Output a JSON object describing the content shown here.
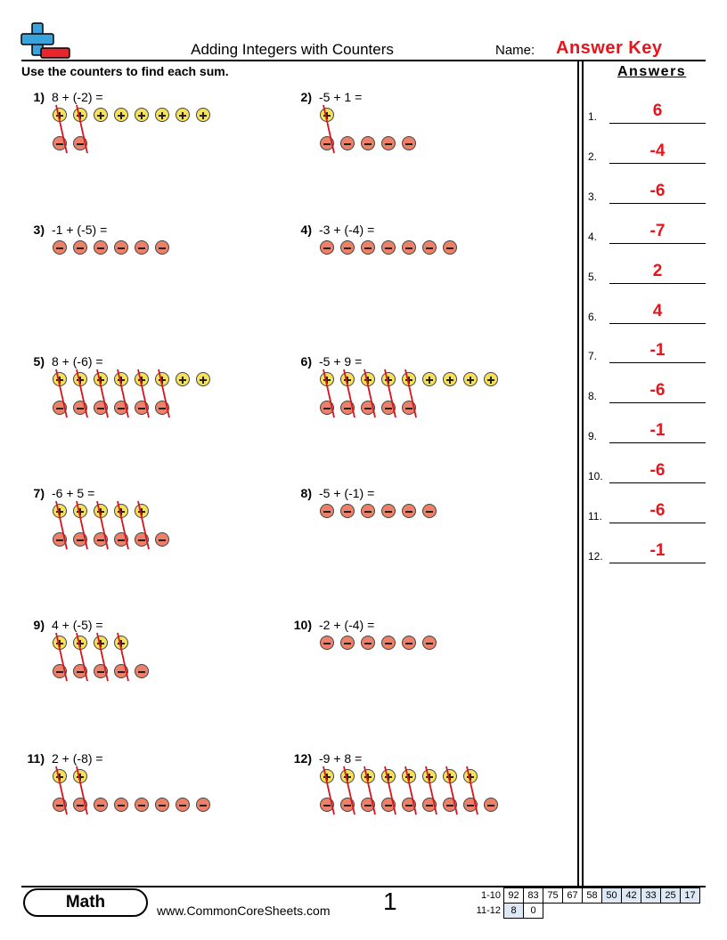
{
  "header": {
    "title": "Adding Integers with Counters",
    "name_label": "Name:",
    "answer_key_label": "Answer Key",
    "instructions": "Use the counters to find each sum."
  },
  "colors": {
    "positive_counter": "#f6e05a",
    "negative_counter": "#ec8068",
    "cross_out": "#d8141c",
    "answer_text": "#e8141c"
  },
  "problems": [
    {
      "number": "1)",
      "expression": "8 + (-2) =",
      "positives": 8,
      "negatives": 2,
      "cancelled": 2
    },
    {
      "number": "2)",
      "expression": "-5 + 1 =",
      "positives": 1,
      "negatives": 5,
      "cancelled": 1
    },
    {
      "number": "3)",
      "expression": "-1 + (-5) =",
      "positives": 0,
      "negatives": 6,
      "cancelled": 0
    },
    {
      "number": "4)",
      "expression": "-3 + (-4) =",
      "positives": 0,
      "negatives": 7,
      "cancelled": 0
    },
    {
      "number": "5)",
      "expression": "8 + (-6) =",
      "positives": 8,
      "negatives": 6,
      "cancelled": 6
    },
    {
      "number": "6)",
      "expression": "-5 + 9 =",
      "positives": 9,
      "negatives": 5,
      "cancelled": 5
    },
    {
      "number": "7)",
      "expression": "-6 + 5 =",
      "positives": 5,
      "negatives": 6,
      "cancelled": 5
    },
    {
      "number": "8)",
      "expression": "-5 + (-1) =",
      "positives": 0,
      "negatives": 6,
      "cancelled": 0
    },
    {
      "number": "9)",
      "expression": "4 + (-5) =",
      "positives": 4,
      "negatives": 5,
      "cancelled": 4
    },
    {
      "number": "10)",
      "expression": "-2 + (-4) =",
      "positives": 0,
      "negatives": 6,
      "cancelled": 0
    },
    {
      "number": "11)",
      "expression": "2 + (-8) =",
      "positives": 2,
      "negatives": 8,
      "cancelled": 2
    },
    {
      "number": "12)",
      "expression": "-9 + 8 =",
      "positives": 8,
      "negatives": 9,
      "cancelled": 8
    }
  ],
  "answers": {
    "title": "Answers",
    "items": [
      {
        "number": "1.",
        "value": "6"
      },
      {
        "number": "2.",
        "value": "-4"
      },
      {
        "number": "3.",
        "value": "-6"
      },
      {
        "number": "4.",
        "value": "-7"
      },
      {
        "number": "5.",
        "value": "2"
      },
      {
        "number": "6.",
        "value": "4"
      },
      {
        "number": "7.",
        "value": "-1"
      },
      {
        "number": "8.",
        "value": "-6"
      },
      {
        "number": "9.",
        "value": "-1"
      },
      {
        "number": "10.",
        "value": "-6"
      },
      {
        "number": "11.",
        "value": "-6"
      },
      {
        "number": "12.",
        "value": "-1"
      }
    ]
  },
  "footer": {
    "subject": "Math",
    "website": "www.CommonCoreSheets.com",
    "page_number": "1",
    "score_rows": [
      {
        "label": "1-10",
        "scores": [
          "92",
          "83",
          "75",
          "67",
          "58",
          "50",
          "42",
          "33",
          "25",
          "17"
        ]
      },
      {
        "label": "11-12",
        "scores": [
          "8",
          "0"
        ]
      }
    ]
  }
}
